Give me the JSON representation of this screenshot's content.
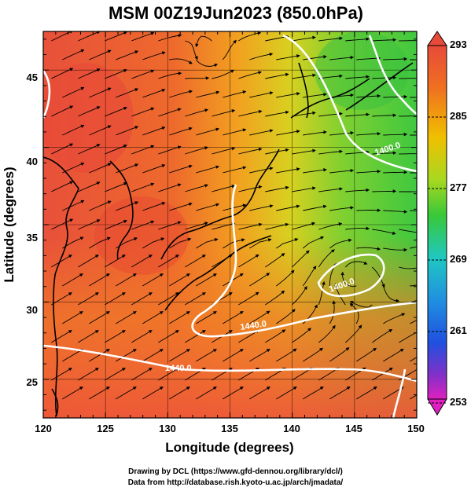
{
  "title": "MSM 00Z19Jun2023 (850.0hPa)",
  "xlabel": "Longitude (degrees)",
  "ylabel": "Latitude  (degrees)",
  "x_ticks": [
    "120",
    "125",
    "130",
    "135",
    "140",
    "145",
    "150"
  ],
  "y_ticks": [
    "25",
    "30",
    "35",
    "40",
    "45"
  ],
  "colorbar": {
    "labels": [
      "293",
      "285",
      "277",
      "269",
      "261",
      "253"
    ],
    "colors": {
      "max": "#e84a3a",
      "warm": "#f07020",
      "mid": "#f0c000",
      "green": "#38c838",
      "cyan": "#20c8c0",
      "blue": "#2050e0",
      "violet": "#8030c8",
      "min": "#e020c0"
    }
  },
  "contour_labels": [
    "1400.0",
    "1440.0",
    "1440.0",
    "1400.0"
  ],
  "credits": {
    "line1": "Drawing by DCL (https://www.gfd-dennou.org/library/dcl/)",
    "line2": "Data from http://database.rish.kyoto-u.ac.jp/arch/jmadata/"
  },
  "map_data": {
    "lon_range": [
      120,
      150
    ],
    "lat_range": [
      22.5,
      47.5
    ],
    "field": "temperature (K) with wind streamlines and geopotential height contours"
  }
}
